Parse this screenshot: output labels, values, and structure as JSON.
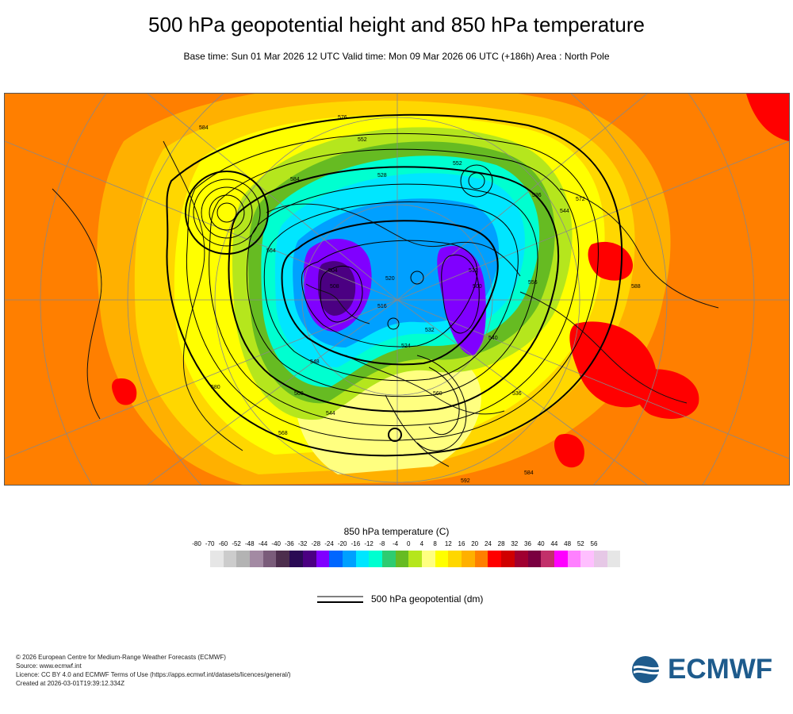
{
  "title": "500 hPa geopotential height and 850 hPa temperature",
  "subtitle": "Base time: Sun 01 Mar 2026 12 UTC Valid time: Mon 09 Mar 2026 06 UTC (+186h) Area : North Pole",
  "map": {
    "contour_labels": [
      "584",
      "576",
      "552",
      "528",
      "504",
      "512",
      "520",
      "536",
      "544",
      "560",
      "568",
      "592",
      "500",
      "508",
      "516",
      "524",
      "532",
      "540",
      "548",
      "556",
      "564",
      "572",
      "580",
      "588"
    ]
  },
  "legend": {
    "title": "850 hPa temperature (C)",
    "ticks": [
      "-80",
      "-70",
      "-60",
      "-52",
      "-48",
      "-44",
      "-40",
      "-36",
      "-32",
      "-28",
      "-24",
      "-20",
      "-16",
      "-12",
      "-8",
      "-4",
      "0",
      "4",
      "8",
      "12",
      "16",
      "20",
      "24",
      "28",
      "32",
      "36",
      "40",
      "44",
      "48",
      "52",
      "56"
    ],
    "colors": [
      "#e6e6e6",
      "#cccccc",
      "#b3b3b3",
      "#a38aa3",
      "#7a5c7a",
      "#4d2e4d",
      "#2a0a54",
      "#4b0082",
      "#8000ff",
      "#0066ff",
      "#00a0ff",
      "#00e6ff",
      "#00ffd0",
      "#2ecc71",
      "#66bb22",
      "#b5e61d",
      "#ffff80",
      "#ffff00",
      "#ffd700",
      "#ffb000",
      "#ff7f00",
      "#ff0000",
      "#d00000",
      "#a00030",
      "#7a0040",
      "#c2306a",
      "#ff00ff",
      "#ff80ff",
      "#ffbfff",
      "#e6c8e6",
      "#e6e6e6"
    ],
    "geopotential_label": "500 hPa geopotential (dm)"
  },
  "footer": {
    "line1": "© 2026 European Centre for Medium-Range Weather Forecasts (ECMWF)",
    "line2": "Source: www.ecmwf.int",
    "line3": "Licence: CC BY 4.0 and ECMWF Terms of Use (https://apps.ecmwf.int/datasets/licences/general/)",
    "line4": "Created at 2026-03-01T19:39:12.334Z"
  },
  "logo": {
    "text": "ECMWF",
    "color": "#1e5b8c"
  }
}
